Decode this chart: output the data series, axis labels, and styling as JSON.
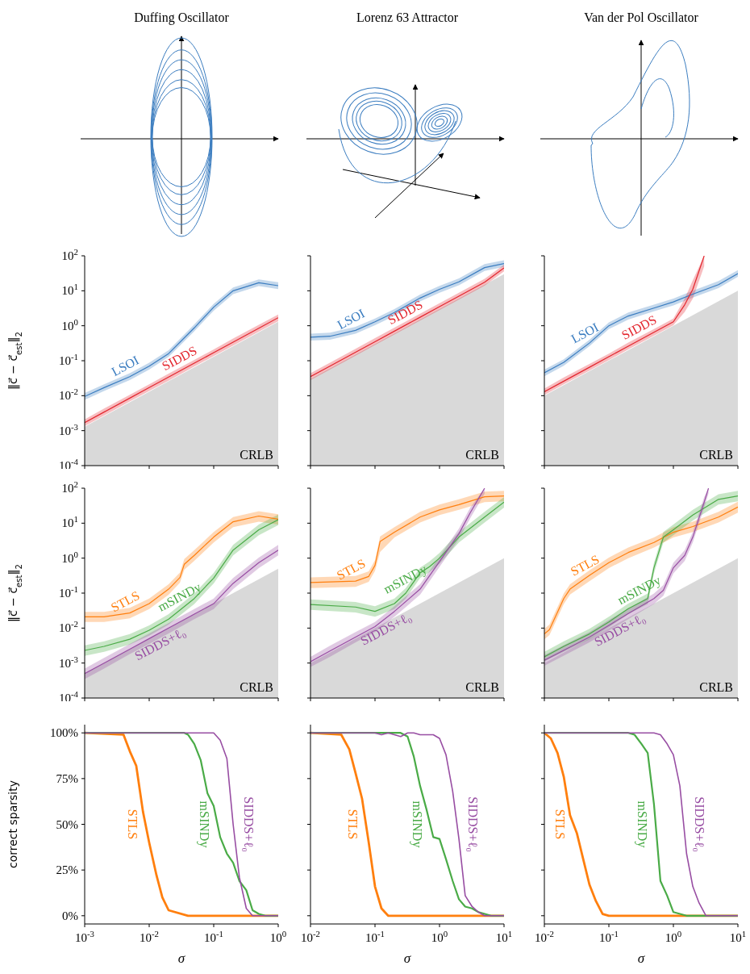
{
  "chart_data": [
    {
      "type": "other",
      "title": "Duffing Oscillator"
    },
    {
      "type": "other",
      "title": "Lorenz 63 Attractor"
    },
    {
      "type": "other",
      "title": "Van der Pol Oscillator"
    },
    {
      "type": "line",
      "log": "xy",
      "ylabel": "‖c⃗ − c⃗$_{est}$‖$_{2}$",
      "tick_labels": "y",
      "xlim": [
        0.001,
        1
      ],
      "xticks": [
        0.001,
        0.01,
        0.1,
        1
      ],
      "ylim": [
        0.0001,
        100
      ],
      "yticks": [
        {
          "value": 0.0001,
          "label": "10$^{-4}$"
        },
        {
          "value": 0.001,
          "label": "10$^{-3}$"
        },
        {
          "value": 0.01,
          "label": "10$^{-2}$"
        },
        {
          "value": 0.1,
          "label": "10$^{-1}$"
        },
        {
          "value": 1,
          "label": "10$^{0}$"
        },
        {
          "value": 10,
          "label": "10$^{1}$"
        },
        {
          "value": 100,
          "label": "10$^{2}$"
        }
      ],
      "series": [
        {
          "type": "area",
          "name": "CRLB",
          "color": "#d9d9d9",
          "x": [
            0.001,
            1
          ],
          "values": [
            0.0013,
            1.3
          ]
        },
        {
          "name": "LSOI",
          "color": "#3b7dc0",
          "x": [
            0.001,
            0.002,
            0.005,
            0.01,
            0.02,
            0.05,
            0.1,
            0.2,
            0.5,
            1
          ],
          "values": [
            0.0095,
            0.017,
            0.035,
            0.07,
            0.16,
            0.87,
            3.4,
            10,
            17,
            14
          ],
          "lower": [
            0.0076,
            0.0136,
            0.028,
            0.056,
            0.128,
            0.7,
            2.7,
            8,
            13.6,
            11.2
          ],
          "upper": [
            0.0119,
            0.021,
            0.044,
            0.088,
            0.2,
            1.09,
            4.25,
            12.5,
            21,
            17.5
          ]
        },
        {
          "name": "SIDDS",
          "color": "#e3262e",
          "x": [
            0.001,
            0.002,
            0.005,
            0.01,
            0.02,
            0.05,
            0.1,
            0.2,
            0.5,
            1
          ],
          "values": [
            0.0017,
            0.0034,
            0.0085,
            0.017,
            0.034,
            0.085,
            0.17,
            0.34,
            0.85,
            1.7
          ],
          "lower": [
            0.00136,
            0.0027,
            0.0068,
            0.0136,
            0.027,
            0.068,
            0.136,
            0.27,
            0.68,
            1.36
          ],
          "upper": [
            0.0021,
            0.0043,
            0.0106,
            0.021,
            0.043,
            0.106,
            0.21,
            0.43,
            1.06,
            2.1
          ]
        }
      ]
    },
    {
      "type": "line",
      "log": "xy",
      "tick_labels": false,
      "xlim": [
        0.01,
        10
      ],
      "xticks": [
        0.01,
        0.1,
        1,
        10
      ],
      "ylim": [
        0.0001,
        100
      ],
      "yticks": [
        0.0001,
        0.001,
        0.01,
        0.1,
        1,
        10,
        100
      ],
      "series": [
        {
          "type": "area",
          "name": "CRLB",
          "color": "#d9d9d9",
          "x": [
            0.01,
            10
          ],
          "values": [
            0.03,
            30
          ]
        },
        {
          "name": "LSOI",
          "color": "#3b7dc0",
          "x": [
            0.01,
            0.02,
            0.05,
            0.1,
            0.2,
            0.5,
            1,
            2,
            5,
            10
          ],
          "values": [
            0.47,
            0.5,
            0.74,
            1.3,
            2.4,
            6.2,
            11,
            18,
            46,
            60
          ],
          "lower": [
            0.38,
            0.4,
            0.59,
            1.04,
            1.9,
            5,
            8.8,
            14.4,
            37,
            48
          ],
          "upper": [
            0.59,
            0.63,
            0.93,
            1.6,
            3,
            7.8,
            13.8,
            22.5,
            58,
            75
          ]
        },
        {
          "name": "SIDDS",
          "color": "#e3262e",
          "x": [
            0.01,
            0.02,
            0.05,
            0.1,
            0.2,
            0.5,
            1,
            2,
            5,
            10
          ],
          "values": [
            0.035,
            0.07,
            0.175,
            0.35,
            0.7,
            1.75,
            3.5,
            7,
            17.5,
            45
          ],
          "lower": [
            0.028,
            0.056,
            0.14,
            0.28,
            0.56,
            1.4,
            2.8,
            5.6,
            14,
            36
          ],
          "upper": [
            0.044,
            0.088,
            0.22,
            0.44,
            0.88,
            2.2,
            4.4,
            8.8,
            22,
            56
          ]
        }
      ]
    },
    {
      "type": "line",
      "log": "xy",
      "tick_labels": false,
      "xlim": [
        0.01,
        10
      ],
      "xticks": [
        0.01,
        0.1,
        1,
        10
      ],
      "ylim": [
        0.0001,
        100
      ],
      "yticks": [
        0.0001,
        0.001,
        0.01,
        0.1,
        1,
        10,
        100
      ],
      "series": [
        {
          "type": "area",
          "name": "CRLB",
          "color": "#d9d9d9",
          "x": [
            0.01,
            10
          ],
          "values": [
            0.01,
            10
          ]
        },
        {
          "name": "LSOI",
          "color": "#3b7dc0",
          "x": [
            0.01,
            0.02,
            0.05,
            0.1,
            0.2,
            0.5,
            1,
            2,
            5,
            10
          ],
          "values": [
            0.045,
            0.09,
            0.32,
            1,
            1.9,
            3.2,
            4.8,
            8,
            15,
            31
          ],
          "lower": [
            0.036,
            0.072,
            0.26,
            0.8,
            1.5,
            2.6,
            3.8,
            6.4,
            12,
            25
          ],
          "upper": [
            0.056,
            0.11,
            0.4,
            1.25,
            2.4,
            4,
            6,
            10,
            19,
            39
          ]
        },
        {
          "name": "SIDDS",
          "color": "#e3262e",
          "x": [
            0.01,
            0.02,
            0.05,
            0.1,
            0.2,
            0.5,
            1,
            1.5,
            2,
            3
          ],
          "values": [
            0.013,
            0.026,
            0.065,
            0.13,
            0.26,
            0.65,
            1.3,
            4,
            11,
            100
          ],
          "lower": [
            0.0104,
            0.021,
            0.052,
            0.104,
            0.21,
            0.52,
            1.04,
            2.5,
            6,
            50
          ],
          "upper": [
            0.016,
            0.033,
            0.081,
            0.16,
            0.33,
            0.81,
            1.6,
            6,
            20,
            100
          ]
        }
      ]
    },
    {
      "type": "line",
      "log": "xy",
      "ylabel": "‖c⃗ − c⃗$_{est}$‖$_{2}$",
      "tick_labels": "y",
      "xlim": [
        0.001,
        1
      ],
      "xticks": [
        0.001,
        0.01,
        0.1,
        1
      ],
      "ylim": [
        0.0001,
        100
      ],
      "yticks": [
        {
          "value": 0.0001,
          "label": "10$^{-4}$"
        },
        {
          "value": 0.001,
          "label": "10$^{-3}$"
        },
        {
          "value": 0.01,
          "label": "10$^{-2}$"
        },
        {
          "value": 0.1,
          "label": "10$^{-1}$"
        },
        {
          "value": 1,
          "label": "10$^{0}$"
        },
        {
          "value": 10,
          "label": "10$^{1}$"
        },
        {
          "value": 100,
          "label": "10$^{2}$"
        }
      ],
      "series": [
        {
          "type": "area",
          "name": "CRLB",
          "color": "#d9d9d9",
          "x": [
            0.001,
            1
          ],
          "values": [
            0.0005,
            0.5
          ]
        },
        {
          "name": "STLS",
          "color": "#ff7f0e",
          "x": [
            0.001,
            0.002,
            0.005,
            0.01,
            0.02,
            0.03,
            0.035,
            0.05,
            0.1,
            0.2,
            0.5,
            1
          ],
          "values": [
            0.021,
            0.021,
            0.027,
            0.05,
            0.13,
            0.28,
            0.67,
            1.2,
            4,
            11,
            16,
            13
          ],
          "lower": [
            0.015,
            0.015,
            0.019,
            0.035,
            0.09,
            0.2,
            0.47,
            0.84,
            2.8,
            7.7,
            11,
            9.1
          ],
          "upper": [
            0.029,
            0.029,
            0.038,
            0.07,
            0.18,
            0.39,
            0.94,
            1.7,
            5.6,
            15,
            22,
            18
          ]
        },
        {
          "name": "mSINDy",
          "color": "#4aab47",
          "x": [
            0.001,
            0.002,
            0.005,
            0.01,
            0.02,
            0.05,
            0.1,
            0.2,
            0.5,
            1
          ],
          "values": [
            0.0023,
            0.003,
            0.0048,
            0.0087,
            0.018,
            0.07,
            0.27,
            1.7,
            6.5,
            12.6
          ],
          "lower": [
            0.0016,
            0.0021,
            0.0034,
            0.0061,
            0.0126,
            0.049,
            0.19,
            1.2,
            4.5,
            8.8
          ],
          "upper": [
            0.0032,
            0.0042,
            0.0067,
            0.012,
            0.025,
            0.098,
            0.38,
            2.4,
            9.1,
            17.6
          ]
        },
        {
          "name": "SIDDS+ℓ₀",
          "color": "#984ea3",
          "x": [
            0.001,
            0.002,
            0.005,
            0.01,
            0.02,
            0.05,
            0.1,
            0.2,
            0.5,
            1
          ],
          "values": [
            0.0005,
            0.001,
            0.0025,
            0.005,
            0.01,
            0.025,
            0.05,
            0.19,
            0.74,
            1.7
          ],
          "lower": [
            0.00035,
            0.0007,
            0.0018,
            0.0035,
            0.007,
            0.018,
            0.035,
            0.13,
            0.52,
            1.2
          ],
          "upper": [
            0.0007,
            0.0014,
            0.0035,
            0.007,
            0.014,
            0.035,
            0.07,
            0.27,
            1.04,
            2.4
          ]
        }
      ]
    },
    {
      "type": "line",
      "log": "xy",
      "tick_labels": false,
      "xlim": [
        0.01,
        10
      ],
      "xticks": [
        0.01,
        0.1,
        1,
        10
      ],
      "ylim": [
        0.0001,
        100
      ],
      "yticks": [
        0.0001,
        0.001,
        0.01,
        0.1,
        1,
        10,
        100
      ],
      "series": [
        {
          "type": "area",
          "name": "CRLB",
          "color": "#d9d9d9",
          "x": [
            0.01,
            10
          ],
          "values": [
            0.001,
            1
          ]
        },
        {
          "name": "STLS",
          "color": "#ff7f0e",
          "x": [
            0.01,
            0.05,
            0.08,
            0.1,
            0.12,
            0.2,
            0.5,
            1,
            2,
            5,
            10
          ],
          "values": [
            0.2,
            0.22,
            0.3,
            0.62,
            3,
            5.5,
            15,
            24,
            34,
            57,
            60
          ],
          "lower": [
            0.14,
            0.15,
            0.21,
            0.43,
            1.5,
            3.9,
            10.5,
            17,
            24,
            40,
            42
          ],
          "upper": [
            0.28,
            0.31,
            0.42,
            0.87,
            4.2,
            7.7,
            21,
            34,
            48,
            80,
            84
          ]
        },
        {
          "name": "mSINDy",
          "color": "#4aab47",
          "x": [
            0.01,
            0.05,
            0.1,
            0.2,
            0.3,
            0.5,
            0.7,
            1,
            2,
            5,
            10
          ],
          "values": [
            0.047,
            0.04,
            0.03,
            0.05,
            0.1,
            0.38,
            0.57,
            1,
            4,
            15,
            40
          ],
          "lower": [
            0.033,
            0.028,
            0.021,
            0.035,
            0.07,
            0.27,
            0.4,
            0.7,
            2.8,
            10.5,
            28
          ],
          "upper": [
            0.066,
            0.056,
            0.042,
            0.07,
            0.14,
            0.53,
            0.8,
            1.4,
            5.6,
            21,
            56
          ]
        },
        {
          "name": "SIDDS+ℓ₀",
          "color": "#984ea3",
          "x": [
            0.01,
            0.02,
            0.05,
            0.1,
            0.2,
            0.5,
            1,
            2,
            3,
            5
          ],
          "values": [
            0.0011,
            0.0022,
            0.0055,
            0.011,
            0.03,
            0.13,
            0.8,
            5,
            20,
            100
          ],
          "lower": [
            0.00077,
            0.0015,
            0.0039,
            0.0077,
            0.021,
            0.09,
            0.56,
            3.5,
            14,
            70
          ],
          "upper": [
            0.0015,
            0.0031,
            0.0077,
            0.015,
            0.042,
            0.18,
            1.1,
            7,
            28,
            100
          ]
        }
      ]
    },
    {
      "type": "line",
      "log": "xy",
      "tick_labels": false,
      "xlim": [
        0.01,
        10
      ],
      "xticks": [
        0.01,
        0.1,
        1,
        10
      ],
      "ylim": [
        0.0001,
        100
      ],
      "yticks": [
        0.0001,
        0.001,
        0.01,
        0.1,
        1,
        10,
        100
      ],
      "series": [
        {
          "type": "area",
          "name": "CRLB",
          "color": "#d9d9d9",
          "x": [
            0.01,
            10
          ],
          "values": [
            0.001,
            1
          ]
        },
        {
          "name": "STLS",
          "color": "#ff7f0e",
          "x": [
            0.01,
            0.012,
            0.02,
            0.025,
            0.05,
            0.1,
            0.2,
            0.5,
            1,
            2,
            5,
            10
          ],
          "values": [
            0.0068,
            0.009,
            0.07,
            0.13,
            0.32,
            0.74,
            1.45,
            2.8,
            5.5,
            8,
            15,
            29
          ],
          "lower": [
            0.0048,
            0.0063,
            0.049,
            0.091,
            0.22,
            0.52,
            1,
            2,
            3.9,
            5.6,
            10.5,
            20
          ],
          "upper": [
            0.0095,
            0.0126,
            0.098,
            0.18,
            0.45,
            1.04,
            2,
            3.9,
            7.7,
            11,
            21,
            41
          ]
        },
        {
          "name": "mSINDy",
          "color": "#4aab47",
          "x": [
            0.01,
            0.02,
            0.05,
            0.1,
            0.2,
            0.4,
            0.5,
            0.7,
            1,
            2,
            5,
            10
          ],
          "values": [
            0.0015,
            0.003,
            0.0068,
            0.015,
            0.036,
            0.07,
            0.53,
            4,
            6.5,
            17,
            48,
            60
          ],
          "lower": [
            0.0011,
            0.0021,
            0.0048,
            0.0105,
            0.025,
            0.049,
            0.37,
            2.8,
            4.5,
            12,
            34,
            42
          ],
          "upper": [
            0.0021,
            0.0042,
            0.0095,
            0.021,
            0.05,
            0.098,
            0.74,
            5.6,
            9.1,
            24,
            67,
            84
          ]
        },
        {
          "name": "SIDDS+ℓ₀",
          "color": "#984ea3",
          "x": [
            0.01,
            0.05,
            0.1,
            0.2,
            0.5,
            0.7,
            1,
            1.5,
            2,
            3,
            3.5
          ],
          "values": [
            0.0012,
            0.0055,
            0.012,
            0.026,
            0.07,
            0.12,
            0.53,
            1.2,
            4,
            40,
            100
          ],
          "lower": [
            0.00084,
            0.0039,
            0.0084,
            0.018,
            0.049,
            0.084,
            0.37,
            0.84,
            2.8,
            28,
            70
          ],
          "upper": [
            0.0017,
            0.0077,
            0.017,
            0.036,
            0.098,
            0.17,
            0.74,
            1.7,
            5.6,
            56,
            100
          ]
        }
      ]
    },
    {
      "type": "line",
      "log": "x",
      "ylabel": "correct sparsity",
      "xlabel": "σ",
      "xlim": [
        0.001,
        1
      ],
      "xticks": [
        {
          "value": 0.001,
          "label": "10$^{-3}$"
        },
        {
          "value": 0.01,
          "label": "10$^{-2}$"
        },
        {
          "value": 0.1,
          "label": "10$^{-1}$"
        },
        {
          "value": 1,
          "label": "10$^{0}$"
        }
      ],
      "ylim": [
        -4.5,
        104.5
      ],
      "yticks": [
        {
          "value": 0,
          "label": "0%"
        },
        {
          "value": 25,
          "label": "25%"
        },
        {
          "value": 50,
          "label": "50%"
        },
        {
          "value": 75,
          "label": "75%"
        },
        {
          "value": 100,
          "label": "100%"
        }
      ],
      "series": [
        {
          "name": "STLS",
          "color": "#ff7f0e",
          "x": [
            0.001,
            0.004,
            0.005,
            0.0063,
            0.008,
            0.01,
            0.013,
            0.016,
            0.02,
            0.04,
            1
          ],
          "values": [
            100,
            99,
            90,
            82,
            57,
            40,
            22,
            10,
            3,
            0,
            0
          ]
        },
        {
          "name": "mSINDy",
          "color": "#4aab47",
          "x": [
            0.001,
            0.035,
            0.04,
            0.05,
            0.063,
            0.08,
            0.1,
            0.126,
            0.16,
            0.2,
            0.25,
            0.32,
            0.4,
            0.5,
            0.63,
            1
          ],
          "values": [
            100,
            100,
            99,
            94,
            85,
            67,
            60,
            43,
            34,
            29,
            19,
            14,
            3,
            1,
            0,
            0
          ]
        },
        {
          "name": "SIDDS+ℓ₀",
          "color": "#984ea3",
          "x": [
            0.001,
            0.1,
            0.126,
            0.16,
            0.2,
            0.25,
            0.32,
            0.4,
            1
          ],
          "values": [
            100,
            100,
            96,
            86,
            50,
            21,
            4,
            0,
            0
          ]
        }
      ]
    },
    {
      "type": "line",
      "log": "x",
      "xlabel": "σ",
      "tick_labels": "x",
      "xlim": [
        0.01,
        10
      ],
      "xticks": [
        {
          "value": 0.01,
          "label": "10$^{-2}$"
        },
        {
          "value": 0.1,
          "label": "10$^{-1}$"
        },
        {
          "value": 1,
          "label": "10$^{0}$"
        },
        {
          "value": 10,
          "label": "10$^{1}$"
        }
      ],
      "ylim": [
        -4.5,
        104.5
      ],
      "yticks": [
        0,
        25,
        50,
        75,
        100
      ],
      "series": [
        {
          "name": "STLS",
          "color": "#ff7f0e",
          "x": [
            0.01,
            0.03,
            0.04,
            0.05,
            0.063,
            0.08,
            0.1,
            0.126,
            0.16,
            10
          ],
          "values": [
            100,
            99,
            91,
            78,
            64,
            40,
            16,
            4,
            0,
            0
          ]
        },
        {
          "name": "mSINDy",
          "color": "#4aab47",
          "x": [
            0.01,
            0.2,
            0.25,
            0.32,
            0.4,
            0.5,
            0.63,
            0.8,
            1,
            1.26,
            1.6,
            2,
            2.5,
            3.2,
            4,
            6.3,
            10
          ],
          "values": [
            100,
            100,
            100,
            98,
            87,
            71,
            58,
            43,
            42,
            31,
            19,
            9,
            5,
            4,
            2,
            0,
            0
          ]
        },
        {
          "name": "SIDDS+ℓ₀",
          "color": "#984ea3",
          "x": [
            0.01,
            0.1,
            0.126,
            0.16,
            0.2,
            0.25,
            0.32,
            0.4,
            0.5,
            0.63,
            0.8,
            1,
            1.26,
            1.6,
            2,
            2.5,
            3.2,
            4,
            5,
            10
          ],
          "values": [
            100,
            100,
            99,
            100,
            99,
            98,
            100,
            100,
            99,
            99,
            99,
            97,
            88,
            68,
            42,
            11,
            5,
            2,
            0,
            0
          ]
        }
      ]
    },
    {
      "type": "line",
      "log": "x",
      "xlabel": "σ",
      "tick_labels": "x",
      "xlim": [
        0.01,
        10
      ],
      "xticks": [
        {
          "value": 0.01,
          "label": "10$^{-2}$"
        },
        {
          "value": 0.1,
          "label": "10$^{-1}$"
        },
        {
          "value": 1,
          "label": "10$^{0}$"
        },
        {
          "value": 10,
          "label": "10$^{1}$"
        }
      ],
      "ylim": [
        -4.5,
        104.5
      ],
      "yticks": [
        0,
        25,
        50,
        75,
        100
      ],
      "series": [
        {
          "name": "STLS",
          "color": "#ff7f0e",
          "x": [
            0.01,
            0.0126,
            0.016,
            0.02,
            0.025,
            0.032,
            0.04,
            0.05,
            0.063,
            0.08,
            0.1,
            10
          ],
          "values": [
            100,
            97,
            89,
            76,
            55,
            45,
            31,
            17,
            8,
            1,
            0,
            0
          ]
        },
        {
          "name": "mSINDy",
          "color": "#4aab47",
          "x": [
            0.01,
            0.2,
            0.25,
            0.32,
            0.4,
            0.5,
            0.63,
            0.8,
            1,
            1.26,
            1.6,
            10
          ],
          "values": [
            100,
            100,
            99,
            94,
            89,
            61,
            19,
            11,
            2,
            1,
            0,
            0
          ]
        },
        {
          "name": "SIDDS+ℓ₀",
          "color": "#984ea3",
          "x": [
            0.01,
            0.5,
            0.63,
            0.8,
            1,
            1.26,
            1.6,
            2,
            2.5,
            3.2,
            10
          ],
          "values": [
            100,
            100,
            99,
            94,
            88,
            71,
            34,
            16,
            7,
            0,
            0
          ]
        }
      ]
    }
  ]
}
